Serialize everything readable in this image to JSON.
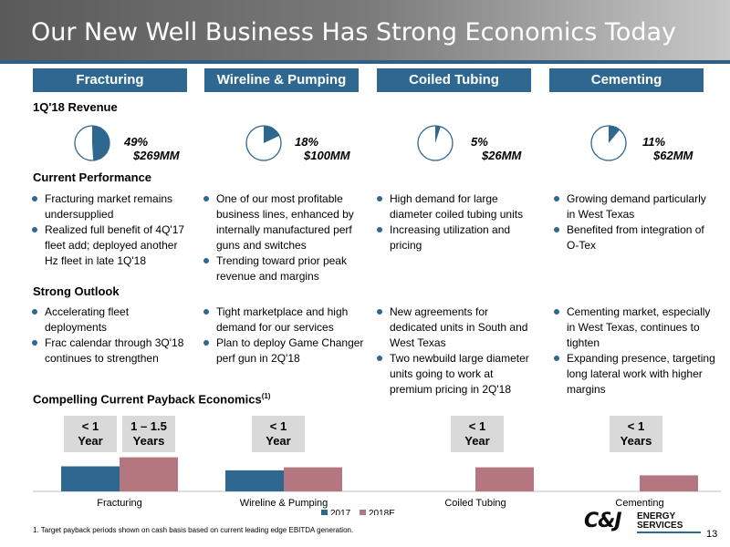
{
  "title": "Our New Well Business Has Strong Economics Today",
  "segments": [
    "Fracturing",
    "Wireline & Pumping",
    "Coiled Tubing",
    "Cementing"
  ],
  "sections": {
    "revenue": "1Q'18 Revenue",
    "current": "Current Performance",
    "outlook": "Strong Outlook",
    "payback": "Compelling Current Payback Economics",
    "payback_sup": "(1)"
  },
  "revenue": [
    {
      "pct": "49%",
      "amount": "$269MM",
      "share": 0.49
    },
    {
      "pct": "18%",
      "amount": "$100MM",
      "share": 0.18
    },
    {
      "pct": "5%",
      "amount": "$26MM",
      "share": 0.05
    },
    {
      "pct": "11%",
      "amount": "$62MM",
      "share": 0.11
    }
  ],
  "current": [
    [
      "Fracturing market remains undersupplied",
      "Realized full benefit of 4Q'17 fleet add; deployed another Hz fleet in late 1Q'18"
    ],
    [
      "One of our most profitable business lines, enhanced by internally manufactured perf guns and switches",
      "Trending toward prior peak revenue and margins"
    ],
    [
      "High demand for large diameter coiled tubing units",
      "Increasing utilization and pricing"
    ],
    [
      "Growing demand particularly in West Texas",
      "Benefited from integration of O-Tex"
    ]
  ],
  "outlook": [
    [
      "Accelerating fleet deployments",
      "Frac calendar through 3Q'18 continues to strengthen"
    ],
    [
      "Tight marketplace and high demand for our services",
      "Plan to deploy Game Changer perf gun in 2Q'18"
    ],
    [
      "New agreements for dedicated units in South and West Texas",
      "Two newbuild large diameter units going to work at premium pricing in 2Q'18"
    ],
    [
      "Cementing market, especially in West Texas, continues to tighten",
      "Expanding presence, targeting long lateral work with higher margins"
    ]
  ],
  "payback_boxes": [
    {
      "line1": "< 1",
      "line2": "Year"
    },
    {
      "line1": "1 – 1.5",
      "line2": "Years"
    },
    {
      "line1": "< 1",
      "line2": "Year"
    },
    {
      "line1": "< 1",
      "line2": "Year"
    },
    {
      "line1": "< 1",
      "line2": "Years"
    }
  ],
  "chart_data": {
    "type": "bar",
    "categories": [
      "Fracturing",
      "Wireline & Pumping",
      "Coiled Tubing",
      "Cementing"
    ],
    "series": [
      {
        "name": "2017",
        "values": [
          25,
          21,
          null,
          null
        ],
        "color": "#2e6790"
      },
      {
        "name": "2018E",
        "values": [
          34,
          24,
          24,
          16
        ],
        "color": "#b5777f"
      }
    ],
    "ylim": [
      0,
      40
    ],
    "legend": "bottom"
  },
  "footnote": "1. Target payback periods shown on cash basis based on current leading edge EBITDA generation.",
  "page_number": "13",
  "logo": {
    "mark": "C&J",
    "line1": "ENERGY",
    "line2": "SERVICES"
  },
  "colors": {
    "accent": "#2e6790",
    "secondary": "#b5777f",
    "box": "#d9d9d9"
  }
}
